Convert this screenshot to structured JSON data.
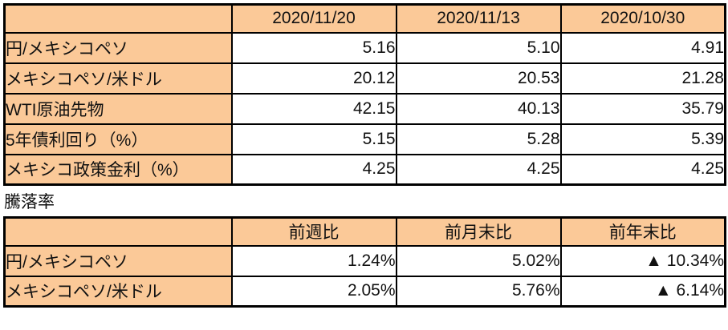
{
  "section_label": "騰落率",
  "colors": {
    "header_fill": "#FBC998",
    "border": "#000000",
    "text": "#111111",
    "cell_background": "#FFFFFF"
  },
  "chart_data": [
    {
      "type": "table",
      "title": "",
      "columns": [
        "",
        "2020/11/20",
        "2020/11/13",
        "2020/10/30"
      ],
      "rows": [
        [
          "円/メキシコペソ",
          "5.16",
          "5.10",
          "4.91"
        ],
        [
          "メキシコペソ/米ドル",
          "20.12",
          "20.53",
          "21.28"
        ],
        [
          "WTI原油先物",
          "42.15",
          "40.13",
          "35.79"
        ],
        [
          "5年債利回り（%）",
          "5.15",
          "5.28",
          "5.39"
        ],
        [
          "メキシコ政策金利（%）",
          "4.25",
          "4.25",
          "4.25"
        ]
      ],
      "layout": {
        "label_column_peach": true,
        "values_right_aligned": true,
        "headers_centered": true
      }
    },
    {
      "type": "table",
      "title": "騰落率",
      "columns": [
        "",
        "前週比",
        "前月末比",
        "前年末比"
      ],
      "rows": [
        [
          "円/メキシコペソ",
          "1.24%",
          "5.02%",
          "▲ 10.34%"
        ],
        [
          "メキシコペソ/米ドル",
          "2.05%",
          "5.76%",
          "▲ 6.14%"
        ]
      ],
      "layout": {
        "label_column_peach": true,
        "values_right_aligned": true,
        "headers_centered": true,
        "negative_marker": "▲"
      }
    }
  ]
}
